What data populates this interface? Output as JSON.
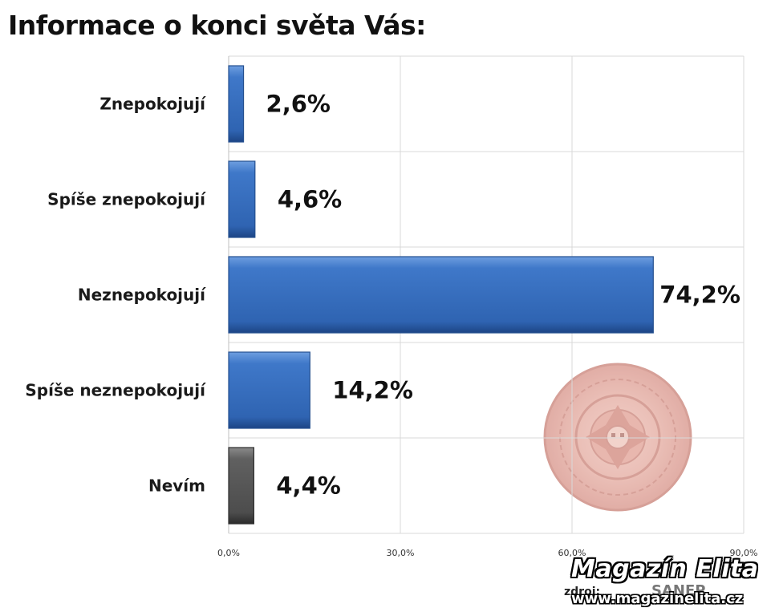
{
  "title": "Informace o konci světa Vás:",
  "chart_data": {
    "type": "bar",
    "orientation": "horizontal",
    "categories": [
      "Znepokojují",
      "Spíše znepokojují",
      "Neznepokojují",
      "Spíše neznepokojují",
      "Nevím"
    ],
    "values": [
      2.6,
      4.6,
      74.2,
      14.2,
      4.4
    ],
    "value_labels": [
      "2,6%",
      "4,6%",
      "74,2%",
      "14,2%",
      "4,4%"
    ],
    "bar_colors": [
      "#3b73c4",
      "#3b73c4",
      "#3b73c4",
      "#3b73c4",
      "#595959"
    ],
    "xlim": [
      0,
      90
    ],
    "x_ticks": [
      0,
      30,
      60,
      90
    ],
    "x_tick_labels": [
      "0,0%",
      "30,0%",
      "60,0%",
      "90,0%"
    ],
    "grid": true
  },
  "watermark": {
    "brand": "Magazín Elita",
    "url": "www.magazinelita.cz"
  },
  "source": {
    "label": "zdroj:",
    "logo_text": "SANEP"
  }
}
